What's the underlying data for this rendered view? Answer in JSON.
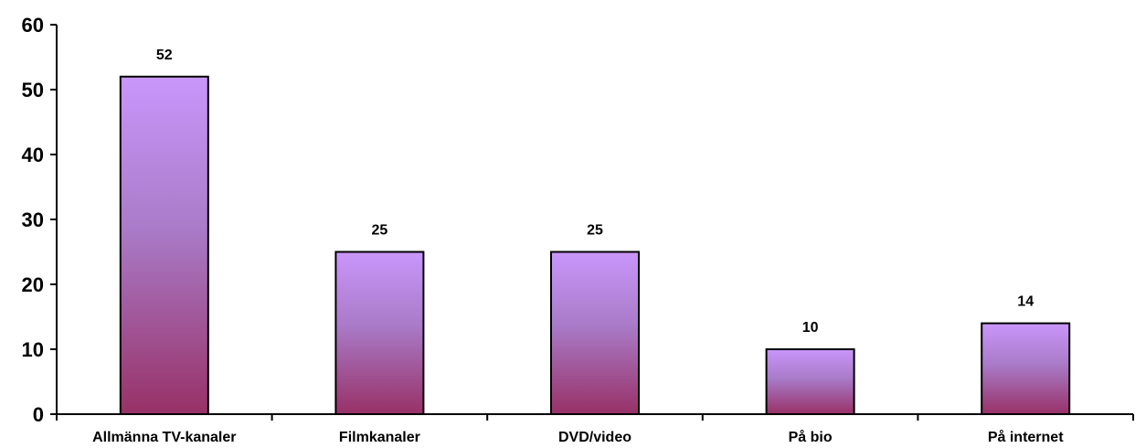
{
  "chart_data": {
    "type": "bar",
    "categories": [
      "Allmänna TV-kanaler",
      "Filmkanaler",
      "DVD/video",
      "På bio",
      "På internet"
    ],
    "values": [
      52,
      25,
      25,
      10,
      14
    ],
    "title": "",
    "xlabel": "",
    "ylabel": "",
    "ylim": [
      0,
      60
    ],
    "yticks": [
      0,
      10,
      20,
      30,
      40,
      50,
      60
    ],
    "grid": false,
    "data_labels": true,
    "colors": {
      "bar_top": "#c996fb",
      "bar_mid": "#a97bc8",
      "bar_bottom": "#983167",
      "bar_stroke": "#000000",
      "axis": "#000000"
    }
  }
}
